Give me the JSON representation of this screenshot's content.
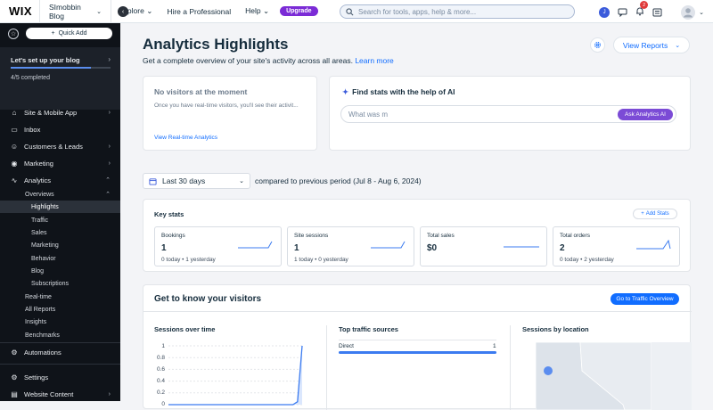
{
  "topbar": {
    "logo": "WIX",
    "site_name": "SImobbin Blog",
    "nav": [
      "Explore",
      "Hire a Professional",
      "Help"
    ],
    "upgrade": "Upgrade",
    "search_placeholder": "Search for tools, apps, help & more...",
    "avatar_initial": "J",
    "notification_count": "2"
  },
  "sidebar": {
    "quick_add": "Quick Add",
    "setup_title": "Let's set up your blog",
    "setup_progress": "4/5 completed",
    "setup_fraction": 0.8,
    "items": [
      {
        "label": "Site & Mobile App",
        "icon": "site-icon",
        "chevron": "›"
      },
      {
        "label": "Inbox",
        "icon": "inbox-icon",
        "chevron": ""
      },
      {
        "label": "Customers & Leads",
        "icon": "customers-icon",
        "chevron": "›"
      },
      {
        "label": "Marketing",
        "icon": "marketing-icon",
        "chevron": "›"
      },
      {
        "label": "Analytics",
        "icon": "analytics-icon",
        "chevron": "⌃"
      }
    ],
    "overviews": "Overviews",
    "analytics_sub": [
      "Highlights",
      "Traffic",
      "Sales",
      "Marketing",
      "Behavior",
      "Blog",
      "Subscriptions"
    ],
    "analytics_more": [
      "Real-time",
      "All Reports",
      "Insights",
      "Benchmarks"
    ],
    "bottom_items": [
      {
        "label": "Automations",
        "icon": "automations-icon",
        "chevron": ""
      },
      {
        "label": "Settings",
        "icon": "settings-icon",
        "chevron": ""
      },
      {
        "label": "Website Content",
        "icon": "content-icon",
        "chevron": "›"
      }
    ]
  },
  "main": {
    "title": "Analytics Highlights",
    "subtitle": "Get a complete overview of your site's activity across all areas.",
    "learn_more": "Learn more",
    "view_reports": "View Reports",
    "no_visitors": {
      "title": "No visitors at the moment",
      "text": "Once you have real-time visitors, you'll see their activit...",
      "link": "View Real-time Analytics"
    },
    "ai": {
      "title": "Find stats with the help of AI",
      "input_value": "What was m",
      "button": "Ask Analytics AI"
    },
    "date_range": "Last 30 days",
    "compared": "compared to previous period (Jul 8 - Aug 6, 2024)",
    "key_stats": {
      "title": "Key stats",
      "add_button": "Add Stats",
      "stats": [
        {
          "name": "Bookings",
          "value": "1",
          "sub": "0 today  •  1 yesterday"
        },
        {
          "name": "Site sessions",
          "value": "1",
          "sub": "1 today  •  0 yesterday"
        },
        {
          "name": "Total sales",
          "value": "$0",
          "sub": ""
        },
        {
          "name": "Total orders",
          "value": "2",
          "sub": "0 today  •  2 yesterday"
        }
      ]
    },
    "visitors": {
      "title": "Get to know your visitors",
      "button": "Go to Traffic Overview",
      "sessions_title": "Sessions over time",
      "traffic_title": "Top traffic sources",
      "location_title": "Sessions by location",
      "traffic_source": "Direct",
      "traffic_value": "1"
    }
  },
  "chart_data": {
    "type": "line",
    "title": "Sessions over time",
    "y_ticks": [
      "1",
      "0.8",
      "0.6",
      "0.4",
      "0.2",
      "0"
    ],
    "ylim": [
      0,
      1
    ],
    "values": [
      0,
      0,
      0,
      0,
      0,
      0,
      0,
      0,
      0,
      0,
      0,
      0,
      0,
      0,
      0,
      0,
      0,
      0,
      0,
      0,
      0,
      0,
      0,
      0,
      0,
      0,
      0,
      0,
      0.05,
      1
    ],
    "color": "#3b7bf0"
  }
}
